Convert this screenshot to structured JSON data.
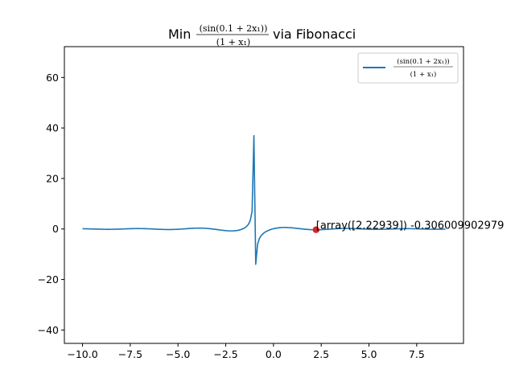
{
  "chart_data": {
    "type": "line",
    "title": {
      "prefix": "Min",
      "numerator": "(sin(0.1 + 2x₁))",
      "denominator": "(1 + x₁)",
      "suffix": "via Fibonacci"
    },
    "xlabel": "",
    "ylabel": "",
    "xlim": [
      -10.95,
      9.95
    ],
    "ylim": [
      -45.3,
      72.2
    ],
    "x_ticks": [
      -10.0,
      -7.5,
      -5.0,
      -2.5,
      0.0,
      2.5,
      5.0,
      7.5
    ],
    "x_tick_labels": [
      "−10.0",
      "−7.5",
      "−5.0",
      "−2.5",
      "0.0",
      "2.5",
      "5.0",
      "7.5"
    ],
    "y_ticks": [
      -40,
      -20,
      0,
      20,
      40,
      60
    ],
    "y_tick_labels": [
      "−40",
      "−20",
      "0",
      "20",
      "40",
      "60"
    ],
    "grid": false,
    "series": [
      {
        "name": {
          "numerator": "(sin(0.1 + 2x₁))",
          "denominator": "(1 + x₁)"
        },
        "color": "#1f77b4",
        "function": "sin(0.1+2x)/(1+x)",
        "x_range": [
          -10,
          9
        ],
        "samples": 200
      }
    ],
    "minimum_point": {
      "x": 2.22939,
      "y": -0.306009902979,
      "color": "#d62728",
      "label": "[array([2.22939]) -0.306009902979"
    },
    "legend": {
      "position": "upper-right"
    }
  }
}
